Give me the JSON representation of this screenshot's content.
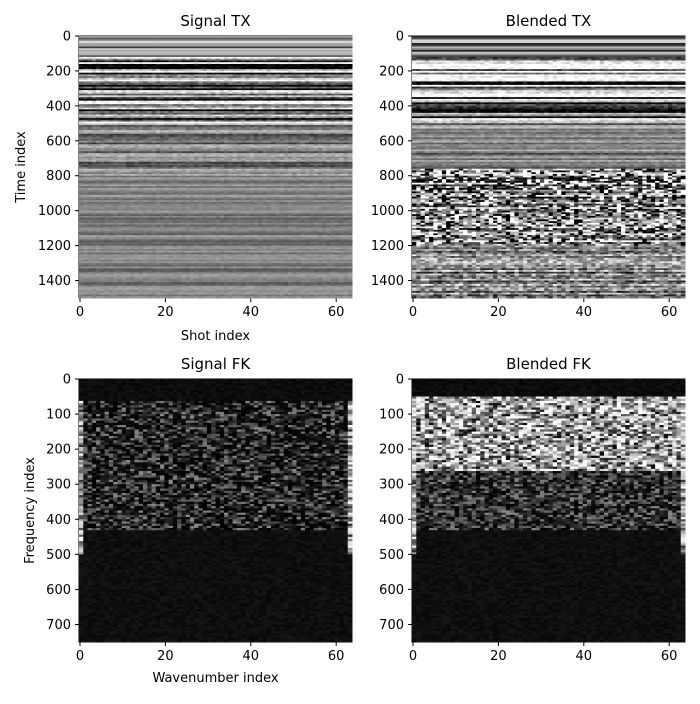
{
  "figure": {
    "background": "#ffffff",
    "colormap": "grayscale"
  },
  "chart_data": [
    {
      "type": "heatmap",
      "title": "Signal TX",
      "xlabel": "Shot index",
      "ylabel": "Time index",
      "x_ticks": [
        0,
        20,
        40,
        60
      ],
      "y_ticks": [
        0,
        200,
        400,
        600,
        800,
        1000,
        1200,
        1400
      ],
      "x_range": [
        0,
        63
      ],
      "y_range": [
        0,
        1500
      ],
      "y_inverted": true,
      "bands": [
        {
          "from": 0,
          "to": 120,
          "pattern": "banded",
          "contrast": 0.55
        },
        {
          "from": 120,
          "to": 500,
          "pattern": "strong-reflections",
          "contrast": 1.0
        },
        {
          "from": 500,
          "to": 800,
          "pattern": "moderate-reflections",
          "contrast": 0.5
        },
        {
          "from": 800,
          "to": 1500,
          "pattern": "weak-reflections",
          "contrast": 0.3
        }
      ]
    },
    {
      "type": "heatmap",
      "title": "Blended TX",
      "xlabel": "",
      "ylabel": "",
      "x_ticks": [
        0,
        20,
        40,
        60
      ],
      "y_ticks": [
        0,
        200,
        400,
        600,
        800,
        1000,
        1200,
        1400
      ],
      "x_range": [
        0,
        63
      ],
      "y_range": [
        0,
        1500
      ],
      "y_inverted": true,
      "bands": [
        {
          "from": 0,
          "to": 120,
          "pattern": "banded",
          "contrast": 0.55
        },
        {
          "from": 120,
          "to": 500,
          "pattern": "strong-reflections",
          "contrast": 1.0
        },
        {
          "from": 500,
          "to": 760,
          "pattern": "moderate-reflections",
          "contrast": 0.5
        },
        {
          "from": 760,
          "to": 1200,
          "pattern": "blending-noise",
          "contrast": 1.0
        },
        {
          "from": 1200,
          "to": 1500,
          "pattern": "noise-tail",
          "contrast": 0.75
        }
      ]
    },
    {
      "type": "heatmap",
      "title": "Signal FK",
      "xlabel": "Wavenumber index",
      "ylabel": "Frequency index",
      "x_ticks": [
        0,
        20,
        40,
        60
      ],
      "y_ticks": [
        0,
        100,
        200,
        300,
        400,
        500,
        600,
        700
      ],
      "x_range": [
        0,
        63
      ],
      "y_range": [
        0,
        750
      ],
      "y_inverted": true,
      "bands": [
        {
          "from": 0,
          "to": 60,
          "pattern": "dark-low-frequency",
          "contrast": 0.05
        },
        {
          "from": 60,
          "to": 430,
          "pattern": "sparse-energy",
          "contrast": 0.3
        },
        {
          "from": 430,
          "to": 750,
          "pattern": "near-black",
          "contrast": 0.08
        }
      ],
      "edge_energy": true
    },
    {
      "type": "heatmap",
      "title": "Blended FK",
      "xlabel": "",
      "ylabel": "",
      "x_ticks": [
        0,
        20,
        40,
        60
      ],
      "y_ticks": [
        0,
        100,
        200,
        300,
        400,
        500,
        600,
        700
      ],
      "x_range": [
        0,
        63
      ],
      "y_range": [
        0,
        750
      ],
      "y_inverted": true,
      "bands": [
        {
          "from": 0,
          "to": 50,
          "pattern": "dark-low-frequency",
          "contrast": 0.05
        },
        {
          "from": 50,
          "to": 260,
          "pattern": "strong-energy",
          "contrast": 1.0
        },
        {
          "from": 260,
          "to": 430,
          "pattern": "medium-energy",
          "contrast": 0.45
        },
        {
          "from": 430,
          "to": 750,
          "pattern": "near-black",
          "contrast": 0.1
        }
      ],
      "edge_energy": true
    }
  ]
}
